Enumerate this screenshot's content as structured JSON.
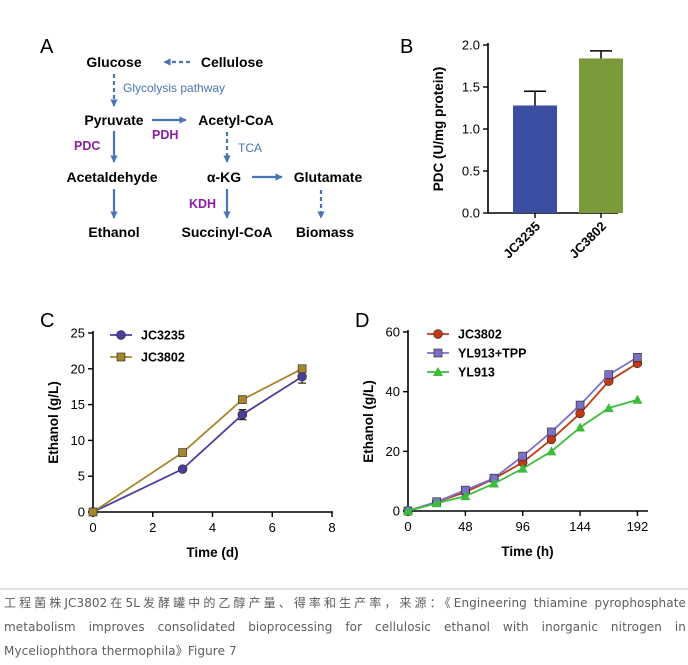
{
  "panels": {
    "a": "A",
    "b": "B",
    "c": "C",
    "d": "D"
  },
  "pathway": {
    "glucose": "Glucose",
    "cellulose": "Cellulose",
    "glycolysis": "Glycolysis pathway",
    "pyruvate": "Pyruvate",
    "acetyl_coa": "Acetyl-CoA",
    "pdc": "PDC",
    "pdh": "PDH",
    "tca": "TCA",
    "acetaldehyde": "Acetaldehyde",
    "akg": "α-KG",
    "glutamate": "Glutamate",
    "kdh": "KDH",
    "ethanol": "Ethanol",
    "succinyl_coa": "Succinyl-CoA",
    "biomass": "Biomass",
    "colors": {
      "arrow": "#4a74b4",
      "enzyme": "#8b1fa6",
      "node": "#000000"
    }
  },
  "caption": {
    "line1": "工程菌株JC3802在5L发酵罐中的乙醇产量、得率和生产率，来源：《Engineering thiamine pyrophosphate",
    "line2": "metabolism improves consolidated bioprocessing for cellulosic ethanol with inorganic nitrogen in",
    "line3": "Myceliophthora thermophila》Figure 7"
  },
  "chart_data": [
    {
      "panel": "B",
      "type": "bar",
      "categories": [
        "JC3235",
        "JC3802"
      ],
      "values": [
        1.28,
        1.84
      ],
      "errors": [
        0.17,
        0.09
      ],
      "colors": [
        "#3c4ea2",
        "#7a9a3c"
      ],
      "xlabel": "",
      "ylabel": "PDC (U/mg protein)",
      "ylim": [
        0,
        2.0
      ],
      "yticks": [
        "0.0",
        "0.5",
        "1.0",
        "1.5",
        "2.0"
      ],
      "grid": false
    },
    {
      "panel": "C",
      "type": "line",
      "xlabel": "Time (d)",
      "ylabel": "Ethanol (g/L)",
      "xlim": [
        0,
        8
      ],
      "ylim": [
        0,
        25
      ],
      "xticks": [
        "0",
        "2",
        "4",
        "6",
        "8"
      ],
      "yticks": [
        "0",
        "5",
        "10",
        "15",
        "20",
        "25"
      ],
      "legend": "top-left",
      "grid": false,
      "series": [
        {
          "name": "JC3235",
          "marker": "circle",
          "color": "#4a3e9c",
          "x": [
            0,
            3,
            5,
            7
          ],
          "y": [
            0,
            6.0,
            13.6,
            18.9
          ],
          "err": [
            0,
            0,
            0.7,
            0.9
          ]
        },
        {
          "name": "JC3802",
          "marker": "square",
          "color": "#a5862c",
          "x": [
            0,
            3,
            5,
            7
          ],
          "y": [
            0,
            8.3,
            15.7,
            20.0
          ],
          "err": [
            0,
            0,
            0,
            0
          ]
        }
      ]
    },
    {
      "panel": "D",
      "type": "line",
      "xlabel": "Time (h)",
      "ylabel": "Ethanol (g/L)",
      "xlim": [
        0,
        200
      ],
      "ylim": [
        0,
        60
      ],
      "xticks": [
        "0",
        "48",
        "96",
        "144",
        "192"
      ],
      "yticks": [
        "0",
        "20",
        "40",
        "60"
      ],
      "legend": "top-left",
      "grid": false,
      "series": [
        {
          "name": "JC3802",
          "marker": "circle",
          "color": "#c23a14",
          "x": [
            0,
            24,
            48,
            72,
            96,
            120,
            144,
            168,
            192
          ],
          "y": [
            0,
            3.0,
            6.3,
            10.8,
            16.3,
            24.0,
            32.7,
            43.5,
            49.5
          ]
        },
        {
          "name": "YL913+TPP",
          "marker": "square",
          "color": "#7a70c8",
          "x": [
            0,
            24,
            48,
            72,
            96,
            120,
            144,
            168,
            192
          ],
          "y": [
            0,
            3.1,
            7.0,
            11.0,
            18.4,
            26.5,
            35.5,
            45.7,
            51.5
          ]
        },
        {
          "name": "YL913",
          "marker": "triangle",
          "color": "#3dbd3d",
          "x": [
            0,
            24,
            48,
            72,
            96,
            120,
            144,
            168,
            192
          ],
          "y": [
            0,
            2.6,
            5.0,
            9.2,
            14.2,
            20.0,
            28.0,
            34.5,
            37.3
          ]
        }
      ]
    }
  ]
}
